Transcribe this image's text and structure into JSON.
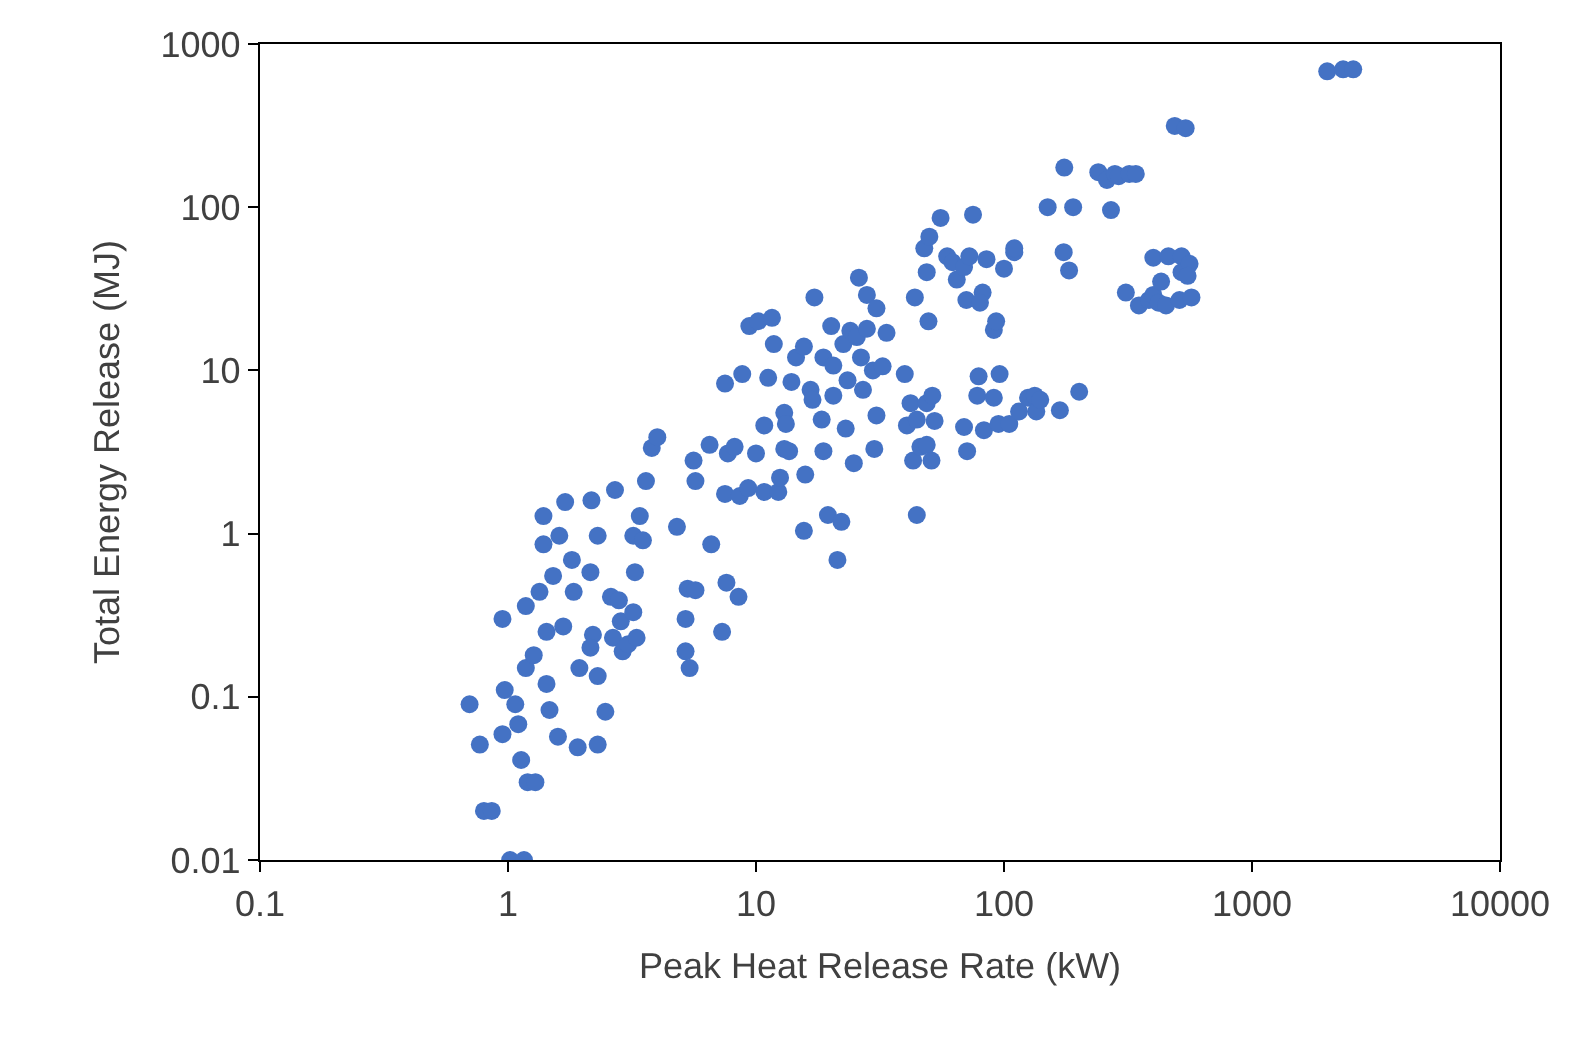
{
  "chart_data": {
    "type": "scatter",
    "xlabel": "Peak Heat Release Rate (kW)",
    "ylabel": "Total Energy Release (MJ)",
    "log": "xy",
    "marker": "circle",
    "xlim": [
      0.1,
      10000
    ],
    "xticks": [
      0.1,
      1,
      10,
      100,
      1000,
      10000
    ],
    "ylim": [
      0.01,
      1000
    ],
    "yticks": [
      0.01,
      0.1,
      1,
      10,
      100,
      1000
    ],
    "series": [
      {
        "color": "#4472c4",
        "x": [
          0.7,
          0.77,
          0.8,
          0.86,
          0.95,
          1.02,
          1.16,
          0.97,
          0.95,
          1.07,
          1.13,
          1.2,
          1.29,
          1.1,
          1.18,
          1.27,
          1.18,
          1.34,
          1.39,
          1.39,
          1.61,
          1.7,
          1.52,
          1.43,
          1.67,
          1.43,
          1.47,
          1.59,
          1.91,
          1.94,
          1.84,
          1.81,
          2.17,
          2.3,
          2.15,
          2.2,
          2.3,
          2.3,
          2.47,
          2.15,
          2.6,
          2.7,
          2.8,
          2.85,
          2.65,
          2.9,
          3.05,
          3.3,
          3.2,
          3.25,
          3.2,
          3.4,
          3.5,
          3.6,
          3.8,
          4.0,
          4.8,
          5.3,
          5.2,
          5.2,
          5.4,
          5.7,
          5.7,
          5.6,
          6.5,
          6.6,
          7.5,
          7.6,
          7.3,
          7.7,
          7.5,
          8.8,
          8.2,
          8.5,
          8.6,
          9.3,
          9.4,
          10.2,
          10.8,
          10,
          11.2,
          10.8,
          12.3,
          12.5,
          11.8,
          11.6,
          13,
          13.2,
          13,
          13.6,
          13.9,
          14.5,
          15.6,
          15.6,
          15.8,
          16.6,
          16.9,
          17.2,
          18.7,
          19.5,
          20.1,
          18.7,
          20.5,
          20.5,
          18.4,
          21.3,
          22.1,
          23,
          24.8,
          22.5,
          23.4,
          24,
          26,
          25.5,
          26.5,
          27,
          28,
          29.6,
          30.6,
          30.6,
          30,
          28,
          32.4,
          33.6,
          39.8,
          40.6,
          42,
          43.7,
          44.5,
          43,
          44.5,
          46,
          48.8,
          48.8,
          51.4,
          49.6,
          48.8,
          47.7,
          50,
          51,
          52.5,
          55.5,
          59,
          62,
          64.5,
          70.5,
          69,
          72.5,
          71,
          69,
          78,
          79,
          82,
          85,
          80,
          75,
          83,
          95,
          91,
          96,
          91,
          93,
          100,
          110,
          110,
          105,
          115,
          125,
          135,
          133,
          140,
          168,
          150,
          175,
          174,
          183,
          190,
          201,
          270,
          240,
          260,
          280,
          290,
          320,
          340,
          310,
          350,
          384,
          400,
          420,
          430,
          450,
          400,
          460,
          488,
          540,
          520,
          510,
          520,
          560,
          550,
          570,
          2010,
          2330,
          2560
        ],
        "values": [
          0.09,
          0.051,
          0.02,
          0.02,
          0.3,
          0.01,
          0.01,
          0.11,
          0.059,
          0.09,
          0.041,
          0.03,
          0.03,
          0.068,
          0.15,
          0.18,
          0.36,
          0.44,
          1.28,
          0.86,
          0.97,
          1.56,
          0.55,
          0.25,
          0.27,
          0.12,
          0.083,
          0.057,
          0.049,
          0.15,
          0.44,
          0.69,
          1.6,
          0.97,
          0.58,
          0.24,
          0.134,
          0.051,
          0.081,
          0.2,
          0.41,
          1.85,
          0.39,
          0.29,
          0.23,
          0.19,
          0.21,
          0.23,
          0.33,
          0.58,
          0.97,
          1.28,
          0.91,
          2.1,
          3.35,
          3.9,
          1.1,
          0.46,
          0.3,
          0.19,
          0.15,
          0.45,
          2.1,
          2.8,
          3.5,
          0.86,
          1.75,
          0.5,
          0.25,
          3.1,
          8.3,
          9.5,
          3.4,
          0.41,
          1.7,
          1.9,
          18.7,
          20,
          4.6,
          3.1,
          9,
          1.8,
          1.8,
          2.2,
          14.5,
          21,
          5.5,
          4.7,
          3.3,
          3.2,
          8.5,
          12,
          14,
          1.04,
          2.3,
          7.6,
          6.6,
          28,
          3.2,
          1.3,
          18.7,
          12,
          10.7,
          7,
          5,
          0.69,
          1.18,
          4.4,
          2.7,
          14.5,
          8.7,
          17.5,
          37,
          16,
          12,
          7.6,
          29,
          10,
          24,
          5.3,
          3.3,
          18,
          10.6,
          17,
          9.5,
          4.6,
          6.3,
          28,
          5,
          2.8,
          1.3,
          3.4,
          3.5,
          6.3,
          7,
          20,
          40,
          56,
          66,
          2.8,
          4.9,
          86,
          50,
          46,
          36,
          27,
          43,
          50,
          3.2,
          4.5,
          7,
          9.2,
          30,
          48,
          26,
          90,
          4.3,
          4.7,
          6.8,
          9.5,
          17.7,
          20,
          42,
          53,
          56,
          4.7,
          5.6,
          6.8,
          5.6,
          7,
          6.6,
          5.7,
          100,
          175,
          53,
          41,
          100,
          7.4,
          96,
          164,
          147,
          160,
          155,
          160,
          160,
          30,
          25,
          27,
          29,
          26,
          35,
          25,
          49,
          50,
          315,
          305,
          50,
          27,
          40,
          45,
          38,
          28,
          680,
          700,
          700
        ]
      }
    ]
  }
}
